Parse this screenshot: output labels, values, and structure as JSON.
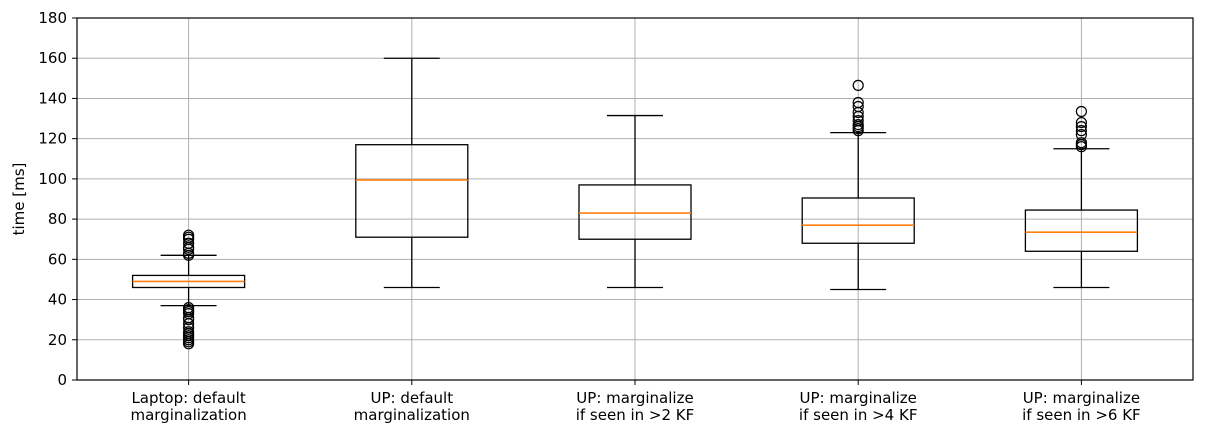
{
  "chart_data": {
    "type": "box",
    "ylabel": "time [ms]",
    "ylim": [
      0,
      180
    ],
    "yticks": [
      0,
      20,
      40,
      60,
      80,
      100,
      120,
      140,
      160,
      180
    ],
    "grid": true,
    "colors": {
      "box": "#000000",
      "median": "#ff7f0e",
      "grid": "#b0b0b0"
    },
    "categories": [
      {
        "label": [
          "Laptop: default",
          "marginalization"
        ],
        "whisker_low": 37,
        "q1": 46,
        "median": 49,
        "q3": 52,
        "whisker_high": 62,
        "outliers": [
          18,
          19,
          20,
          21,
          22,
          23,
          24,
          26,
          28,
          30,
          31,
          33,
          34,
          35,
          36,
          62,
          63,
          65,
          66,
          68,
          70,
          71,
          72
        ]
      },
      {
        "label": [
          "UP: default",
          "marginalization"
        ],
        "whisker_low": 46,
        "q1": 71,
        "median": 99.5,
        "q3": 117,
        "whisker_high": 160,
        "outliers": []
      },
      {
        "label": [
          "UP: marginalize",
          "if seen in >2 KF"
        ],
        "whisker_low": 46,
        "q1": 70,
        "median": 83,
        "q3": 97,
        "whisker_high": 131.5,
        "outliers": []
      },
      {
        "label": [
          "UP: marginalize",
          "if seen in >4 KF"
        ],
        "whisker_low": 45,
        "q1": 68,
        "median": 77,
        "q3": 90.5,
        "whisker_high": 123,
        "outliers": [
          124,
          125,
          126,
          127,
          129,
          131,
          133,
          136,
          138,
          146.5
        ]
      },
      {
        "label": [
          "UP: marginalize",
          "if seen in >6 KF"
        ],
        "whisker_low": 46,
        "q1": 64,
        "median": 73.5,
        "q3": 84.5,
        "whisker_high": 115,
        "outliers": [
          116,
          117,
          118,
          122,
          124,
          126,
          128,
          133.5
        ]
      }
    ]
  }
}
